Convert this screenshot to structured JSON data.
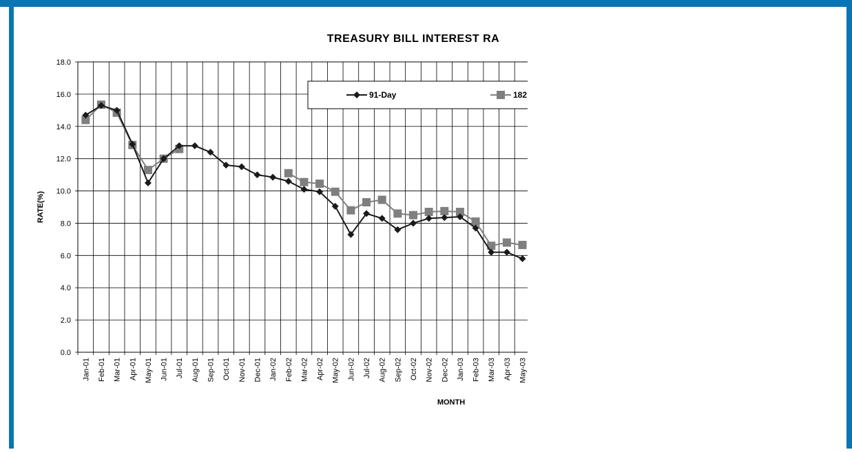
{
  "chart_data": {
    "type": "line",
    "title": "TREASURY BILL INTEREST RA",
    "x_label": "MONTH",
    "y_label": "RATE(%)",
    "categories": [
      "Jan-01",
      "Feb-01",
      "Mar-01",
      "Apr-01",
      "May-01",
      "Jun-01",
      "Jul-01",
      "Aug-01",
      "Sep-01",
      "Oct-01",
      "Nov-01",
      "Dec-01",
      "Jan-02",
      "Feb-02",
      "Mar-02",
      "Apr-02",
      "May-02",
      "Jun-02",
      "Jul-02",
      "Aug-02",
      "Sep-02",
      "Oct-02",
      "Nov-02",
      "Dec-02",
      "Jan-03",
      "Feb-03",
      "Mar-03",
      "Apr-03",
      "May-03"
    ],
    "series": [
      {
        "name": "91-Day",
        "color": "#1a1a1a",
        "marker": "diamond",
        "values": [
          14.7,
          15.3,
          15.0,
          12.9,
          10.5,
          12.0,
          12.8,
          12.8,
          12.4,
          11.6,
          11.5,
          11.0,
          10.85,
          10.6,
          10.1,
          9.95,
          9.05,
          7.3,
          8.6,
          8.3,
          7.6,
          8.0,
          8.3,
          8.35,
          8.4,
          7.7,
          6.2,
          6.2,
          5.8
        ]
      },
      {
        "name": "182",
        "color": "#7f7f7f",
        "marker": "square",
        "values": [
          14.4,
          15.35,
          14.85,
          12.85,
          11.3,
          12.0,
          12.6,
          null,
          null,
          null,
          null,
          null,
          null,
          11.1,
          10.55,
          10.45,
          9.95,
          8.8,
          9.3,
          9.45,
          8.6,
          8.5,
          8.7,
          8.75,
          8.7,
          8.1,
          6.6,
          6.8,
          6.65
        ]
      }
    ],
    "ylim": [
      0,
      18
    ],
    "yticks": [
      {
        "value": 0,
        "label": "0.0"
      },
      {
        "value": 2,
        "label": "2.0"
      },
      {
        "value": 4,
        "label": "4.0"
      },
      {
        "value": 6,
        "label": "6.0"
      },
      {
        "value": 8,
        "label": "8.0"
      },
      {
        "value": 10,
        "label": "10.0"
      },
      {
        "value": 12,
        "label": "12.0"
      },
      {
        "value": 14,
        "label": "14.0"
      },
      {
        "value": 16,
        "label": "16.0"
      },
      {
        "value": 18,
        "label": "18.0"
      }
    ],
    "grid": true
  }
}
